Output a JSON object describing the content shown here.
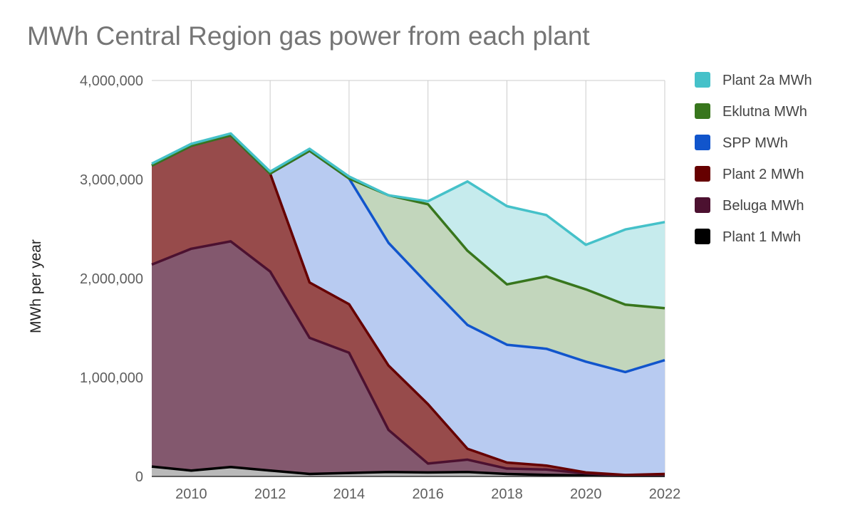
{
  "chart_data": {
    "type": "area",
    "stacked": true,
    "title": "MWh Central Region gas power from each plant",
    "xlabel": "",
    "ylabel": "MWh per year",
    "x": [
      2009,
      2010,
      2011,
      2012,
      2013,
      2014,
      2015,
      2016,
      2017,
      2018,
      2019,
      2020,
      2021,
      2022
    ],
    "xlim": [
      2009,
      2022
    ],
    "ylim": [
      0,
      4000000
    ],
    "x_ticks": [
      "2010",
      "2012",
      "2014",
      "2016",
      "2018",
      "2020",
      "2022"
    ],
    "y_ticks": [
      "0",
      "1,000,000",
      "2,000,000",
      "3,000,000",
      "4,000,000"
    ],
    "grid": true,
    "legend_position": "right",
    "series": [
      {
        "name": "Plant 1 Mwh",
        "color": "#000000",
        "values": [
          100000,
          60000,
          95000,
          60000,
          25000,
          35000,
          45000,
          40000,
          45000,
          25000,
          15000,
          10000,
          5000,
          5000
        ]
      },
      {
        "name": "Beluga MWh",
        "color": "#4c1130",
        "values": [
          2040000,
          2240000,
          2280000,
          2010000,
          1375000,
          1215000,
          425000,
          90000,
          125000,
          55000,
          55000,
          20000,
          5000,
          5000
        ]
      },
      {
        "name": "Plant 2 MWh",
        "color": "#660000",
        "values": [
          1000000,
          1040000,
          1070000,
          990000,
          560000,
          490000,
          650000,
          600000,
          110000,
          60000,
          40000,
          10000,
          5000,
          15000
        ]
      },
      {
        "name": "SPP MWh",
        "color": "#1155cc",
        "values": [
          0,
          0,
          0,
          0,
          1330000,
          1270000,
          1240000,
          1210000,
          1250000,
          1190000,
          1180000,
          1120000,
          1040000,
          1150000
        ]
      },
      {
        "name": "Eklutna MWh",
        "color": "#38761d",
        "values": [
          0,
          0,
          0,
          0,
          0,
          0,
          480000,
          810000,
          750000,
          610000,
          730000,
          730000,
          680000,
          525000
        ]
      },
      {
        "name": "Plant 2a MWh",
        "color": "#45c1c9",
        "values": [
          20000,
          20000,
          20000,
          20000,
          20000,
          20000,
          0,
          30000,
          700000,
          790000,
          620000,
          450000,
          760000,
          870000
        ]
      }
    ],
    "legend_order": [
      "Plant 2a MWh",
      "Eklutna MWh",
      "SPP MWh",
      "Plant 2 MWh",
      "Beluga MWh",
      "Plant 1 Mwh"
    ],
    "area_fills": {
      "Plant 1 Mwh": "#b9b9b9",
      "Beluga MWh": "#83586e",
      "Plant 2 MWh": "#974b4b",
      "SPP MWh": "#b8cbf1",
      "Eklutna MWh": "#c2d6bc",
      "Plant 2a MWh": "#c6ebed"
    }
  }
}
